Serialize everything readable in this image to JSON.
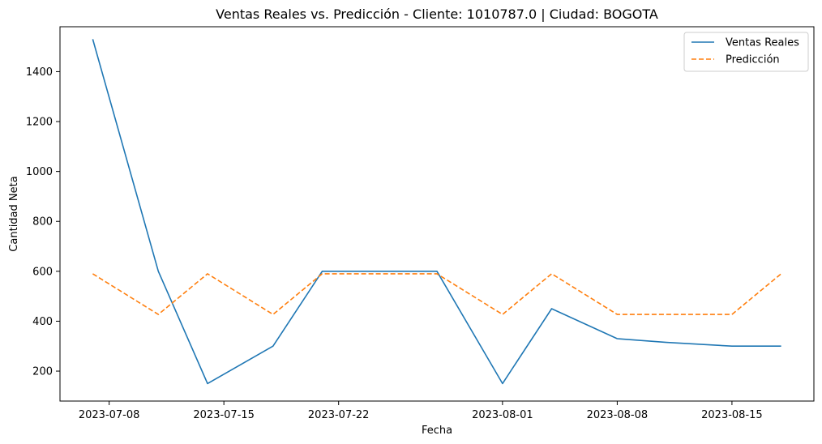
{
  "chart_data": {
    "type": "line",
    "title": "Ventas Reales vs. Predicción - Cliente: 1010787.0 | Ciudad: BOGOTA",
    "xlabel": "Fecha",
    "ylabel": "Cantidad Neta",
    "x": [
      "2023-07-07",
      "2023-07-11",
      "2023-07-14",
      "2023-07-18",
      "2023-07-21",
      "2023-07-25",
      "2023-07-28",
      "2023-08-01",
      "2023-08-04",
      "2023-08-08",
      "2023-08-11",
      "2023-08-15",
      "2023-08-18"
    ],
    "xticks": [
      "2023-07-08",
      "2023-07-15",
      "2023-07-22",
      "2023-08-01",
      "2023-08-08",
      "2023-08-15"
    ],
    "xlim": [
      "2023-07-05",
      "2023-08-20"
    ],
    "yticks": [
      200,
      400,
      600,
      800,
      1000,
      1200,
      1400
    ],
    "ylim": [
      80,
      1580
    ],
    "grid": false,
    "legend_position": "top-right",
    "series": [
      {
        "name": "Ventas Reales",
        "color": "#1f77b4",
        "style": "solid",
        "values": [
          1530,
          600,
          150,
          300,
          600,
          600,
          600,
          150,
          450,
          330,
          315,
          300,
          300
        ]
      },
      {
        "name": "Predicción",
        "color": "#ff7f0e",
        "style": "dashed",
        "values": [
          590,
          427,
          590,
          427,
          590,
          590,
          590,
          427,
          590,
          427,
          427,
          427,
          590
        ]
      }
    ]
  }
}
